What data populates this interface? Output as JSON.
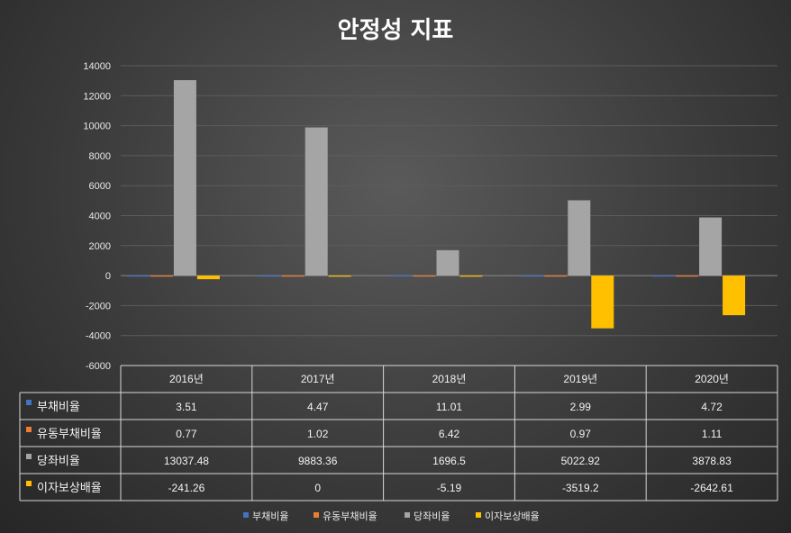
{
  "chart_data": {
    "type": "bar",
    "title": "안정성 지표",
    "categories": [
      "2016년",
      "2017년",
      "2018년",
      "2019년",
      "2020년"
    ],
    "ylim": [
      -6000,
      14000
    ],
    "yticks": [
      14000,
      12000,
      10000,
      8000,
      6000,
      4000,
      2000,
      0,
      -2000,
      -4000,
      -6000
    ],
    "grid": true,
    "legend_position": "bottom",
    "data_table": true,
    "series": [
      {
        "name": "부채비율",
        "color": "#4472C4",
        "values": [
          3.51,
          4.47,
          11.01,
          2.99,
          4.72
        ],
        "labels": [
          "3.51",
          "4.47",
          "11.01",
          "2.99",
          "4.72"
        ]
      },
      {
        "name": "유동부채비율",
        "color": "#ED7D31",
        "values": [
          0.77,
          1.02,
          6.42,
          0.97,
          1.11
        ],
        "labels": [
          "0.77",
          "1.02",
          "6.42",
          "0.97",
          "1.11"
        ]
      },
      {
        "name": "당좌비율",
        "color": "#A5A5A5",
        "values": [
          13037.48,
          9883.36,
          1696.5,
          5022.92,
          3878.83
        ],
        "labels": [
          "13037.48",
          "9883.36",
          "1696.5",
          "5022.92",
          "3878.83"
        ]
      },
      {
        "name": "이자보상배율",
        "color": "#FFC000",
        "values": [
          -241.26,
          0,
          -5.19,
          -3519.2,
          -2642.61
        ],
        "labels": [
          "-241.26",
          "0",
          "-5.19",
          "-3519.2",
          "-2642.61"
        ]
      }
    ]
  }
}
